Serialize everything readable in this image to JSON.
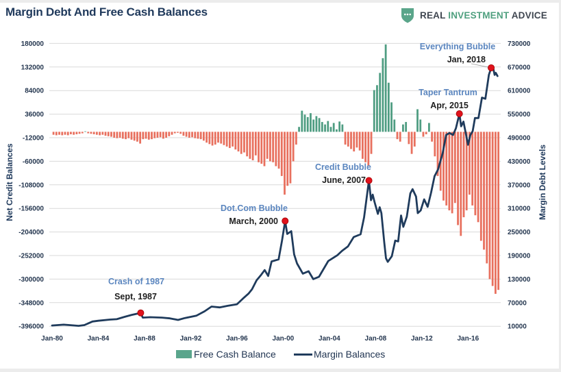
{
  "header": {
    "logo": {
      "icon": "shield-dots-icon",
      "brand_parts": [
        "REAL",
        "INVESTMENT",
        "ADVICE"
      ]
    }
  },
  "colors": {
    "title": "#203a5c",
    "line": "#1f3b5c",
    "bar_positive": "#4f9d82",
    "bar_negative": "#e8705e",
    "legend_bar": "#5aa58c",
    "annotation_dot": "#e0121c",
    "annotation_title": "#5b86bf",
    "grid": "#d9d9d9",
    "logo_green": "#5aa58a"
  },
  "chart_data": {
    "type": "bar",
    "title": "Margin Debt And Free Cash Balances",
    "xlabel": "",
    "ylabel_left": "Net Credit Balances",
    "ylabel_right": "Margin Debt Levels",
    "xlim": [
      1980,
      2018.6
    ],
    "ylim_left": [
      -396000,
      180000
    ],
    "ylim_right": [
      10000,
      730000
    ],
    "yticks_left": [
      180000,
      132000,
      84000,
      36000,
      -12000,
      -60000,
      -108000,
      -156000,
      -204000,
      -252000,
      -300000,
      -348000,
      -396000
    ],
    "yticks_right": [
      730000,
      670000,
      610000,
      550000,
      490000,
      430000,
      370000,
      310000,
      250000,
      190000,
      130000,
      70000,
      10000
    ],
    "xticks": [
      {
        "label": "Jan-80",
        "value": 1980
      },
      {
        "label": "Jan-84",
        "value": 1984
      },
      {
        "label": "Jan-88",
        "value": 1988
      },
      {
        "label": "Jan-92",
        "value": 1992
      },
      {
        "label": "Jan-96",
        "value": 1996
      },
      {
        "label": "Jan-00",
        "value": 2000
      },
      {
        "label": "Jan-04",
        "value": 2004
      },
      {
        "label": "Jan-08",
        "value": 2008
      },
      {
        "label": "Jan-12",
        "value": 2012
      },
      {
        "label": "Jan-16",
        "value": 2016
      }
    ],
    "grid": true,
    "legend": {
      "position": "bottom",
      "entries": [
        {
          "label": "Free Cash Balance",
          "kind": "bar"
        },
        {
          "label": "Margin Balances",
          "kind": "line"
        }
      ]
    },
    "series": [
      {
        "name": "Free Cash Balance",
        "type": "bar",
        "axis": "left",
        "x_start": 1980.0,
        "frequency": "quarterly",
        "values": [
          -6000,
          -7000,
          -6000,
          -7000,
          -6000,
          -7000,
          -5000,
          -6000,
          -5000,
          -4000,
          -3000,
          1000,
          -3000,
          -4000,
          -5000,
          -6000,
          -7000,
          -6000,
          -8000,
          -9000,
          -10000,
          -12000,
          -13000,
          -12000,
          -14000,
          -15000,
          -13000,
          -16000,
          -18000,
          -20000,
          -24000,
          -15000,
          -14000,
          -16000,
          -15000,
          -13000,
          -12000,
          -11000,
          -14000,
          -12000,
          -9000,
          -6000,
          -3000,
          -2000,
          -4000,
          -8000,
          -10000,
          -12000,
          -11000,
          -13000,
          -14000,
          -15000,
          -18000,
          -22000,
          -25000,
          -28000,
          -26000,
          -22000,
          -24000,
          -27000,
          -30000,
          -33000,
          -30000,
          -36000,
          -40000,
          -45000,
          -42000,
          -50000,
          -55000,
          -58000,
          -48000,
          -62000,
          -65000,
          -70000,
          -55000,
          -60000,
          -62000,
          -70000,
          -75000,
          -90000,
          -128000,
          -110000,
          -105000,
          -60000,
          -26000,
          10000,
          43000,
          35000,
          30000,
          38000,
          25000,
          32000,
          28000,
          20000,
          15000,
          22000,
          10000,
          18000,
          5000,
          21000,
          15000,
          -26000,
          -30000,
          -35000,
          -40000,
          -32000,
          -38000,
          -55000,
          -62000,
          -70000,
          -45000,
          85000,
          95000,
          120000,
          150000,
          178000,
          100000,
          60000,
          25000,
          -15000,
          -20000,
          15000,
          20000,
          -25000,
          -45000,
          -30000,
          46000,
          25000,
          -10000,
          -5000,
          18000,
          -20000,
          -50000,
          -90000,
          -120000,
          -140000,
          -150000,
          -160000,
          -166000,
          -145000,
          -190000,
          -212000,
          -174000,
          -160000,
          -128000,
          -150000,
          -170000,
          -184000,
          -222000,
          -240000,
          -268000,
          -300000,
          -314000,
          -330000,
          -322000
        ]
      },
      {
        "name": "Margin Balances",
        "type": "line",
        "axis": "right",
        "x": [
          1980.0,
          1981.0,
          1981.5,
          1982.3,
          1982.8,
          1983.5,
          1984.0,
          1985.0,
          1985.6,
          1986.3,
          1986.9,
          1987.67,
          1987.85,
          1988.5,
          1989.5,
          1990.2,
          1990.9,
          1991.5,
          1992.5,
          1993.2,
          1993.8,
          1994.5,
          1995.2,
          1996.0,
          1996.5,
          1997.0,
          1997.3,
          1997.7,
          1998.1,
          1998.4,
          1998.7,
          1999.0,
          1999.6,
          1999.9,
          2000.17,
          2000.35,
          2000.7,
          2000.95,
          2001.2,
          2001.7,
          2002.2,
          2002.6,
          2003.1,
          2003.9,
          2004.7,
          2005.1,
          2005.6,
          2006.1,
          2006.7,
          2007.0,
          2007.42,
          2007.6,
          2007.75,
          2007.9,
          2008.2,
          2008.35,
          2008.5,
          2008.75,
          2008.9,
          2009.05,
          2009.4,
          2009.7,
          2009.95,
          2010.2,
          2010.4,
          2010.7,
          2011.0,
          2011.2,
          2011.5,
          2011.65,
          2011.9,
          2012.2,
          2012.5,
          2012.8,
          2013.1,
          2013.4,
          2013.8,
          2014.1,
          2014.4,
          2014.7,
          2014.95,
          2015.25,
          2015.4,
          2015.6,
          2016.0,
          2016.2,
          2016.4,
          2016.6,
          2016.9,
          2017.2,
          2017.5,
          2017.8,
          2018.0,
          2018.2,
          2018.3,
          2018.4,
          2018.55
        ],
        "values": [
          12000,
          14000,
          13000,
          11000,
          13000,
          22000,
          24000,
          27000,
          28000,
          34000,
          39000,
          44000,
          32000,
          33000,
          32000,
          30000,
          26000,
          31000,
          37000,
          48000,
          60000,
          58000,
          62000,
          66000,
          80000,
          93000,
          104000,
          127000,
          141000,
          153000,
          138000,
          175000,
          180000,
          228000,
          278000,
          245000,
          252000,
          193000,
          170000,
          144000,
          150000,
          130000,
          136000,
          176000,
          191000,
          202000,
          213000,
          237000,
          244000,
          287000,
          381000,
          331000,
          345000,
          327000,
          296000,
          313000,
          298000,
          223000,
          183000,
          174000,
          188000,
          228000,
          226000,
          292000,
          263000,
          289000,
          348000,
          359000,
          340000,
          298000,
          305000,
          333000,
          314000,
          350000,
          392000,
          409000,
          450000,
          497000,
          502000,
          497000,
          514000,
          551000,
          519000,
          531000,
          472000,
          497000,
          507000,
          540000,
          540000,
          592000,
          589000,
          650000,
          668000,
          664000,
          650000,
          655000,
          647000
        ]
      }
    ],
    "annotations": [
      {
        "title": "Crash of 1987",
        "date": "Sept, 1987",
        "x": 1987.67,
        "value": 44000
      },
      {
        "title": "Dot.Com Bubble",
        "date": "March, 2000",
        "x": 2000.17,
        "value": 278000
      },
      {
        "title": "Credit Bubble",
        "date": "June, 2007",
        "x": 2007.42,
        "value": 381000
      },
      {
        "title": "Taper Tantrum",
        "date": "Apr, 2015",
        "x": 2015.25,
        "value": 551000
      },
      {
        "title": "Everything Bubble",
        "date": "Jan, 2018",
        "x": 2018.0,
        "value": 668000
      }
    ]
  }
}
